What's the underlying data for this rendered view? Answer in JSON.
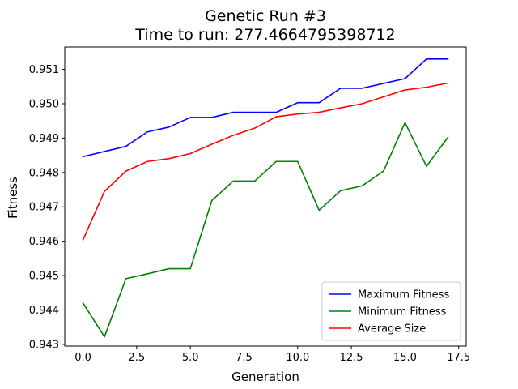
{
  "chart_data": {
    "type": "line",
    "title": "Genetic Run #3",
    "subtitle": "Time to run: 277.4664795398712",
    "xlabel": "Generation",
    "ylabel": "Fitness",
    "xlim": [
      -0.85,
      17.85
    ],
    "ylim": [
      0.94295,
      0.95165
    ],
    "xticks": [
      0.0,
      2.5,
      5.0,
      7.5,
      10.0,
      12.5,
      15.0,
      17.5
    ],
    "xtick_labels": [
      "0.0",
      "2.5",
      "5.0",
      "7.5",
      "10.0",
      "12.5",
      "15.0",
      "17.5"
    ],
    "yticks": [
      0.943,
      0.944,
      0.945,
      0.946,
      0.947,
      0.948,
      0.949,
      0.95,
      0.951
    ],
    "ytick_labels": [
      "0.943",
      "0.944",
      "0.945",
      "0.946",
      "0.947",
      "0.948",
      "0.949",
      "0.950",
      "0.951"
    ],
    "grid": false,
    "legend_position": "lower-right",
    "x": [
      0,
      1,
      2,
      3,
      4,
      5,
      6,
      7,
      8,
      9,
      10,
      11,
      12,
      13,
      14,
      15,
      16,
      17
    ],
    "series": [
      {
        "name": "Maximum Fitness",
        "color": "#0000ff",
        "values": [
          0.94846,
          0.94861,
          0.94876,
          0.94918,
          0.94932,
          0.9496,
          0.9496,
          0.94975,
          0.94975,
          0.94975,
          0.95003,
          0.95003,
          0.95045,
          0.95045,
          0.95059,
          0.95073,
          0.9513,
          0.9513
        ]
      },
      {
        "name": "Minimum Fitness",
        "color": "#008000",
        "values": [
          0.9442,
          0.94322,
          0.94491,
          0.94505,
          0.9452,
          0.9452,
          0.94718,
          0.94775,
          0.94775,
          0.94832,
          0.94832,
          0.9469,
          0.94747,
          0.94761,
          0.94804,
          0.94945,
          0.94818,
          0.94902
        ]
      },
      {
        "name": "Average Size",
        "color": "#ff0000",
        "values": [
          0.94604,
          0.94745,
          0.94804,
          0.94832,
          0.9484,
          0.94855,
          0.94882,
          0.94908,
          0.94929,
          0.94962,
          0.9497,
          0.94975,
          0.94988,
          0.95,
          0.9502,
          0.9504,
          0.95048,
          0.9506
        ]
      }
    ]
  }
}
